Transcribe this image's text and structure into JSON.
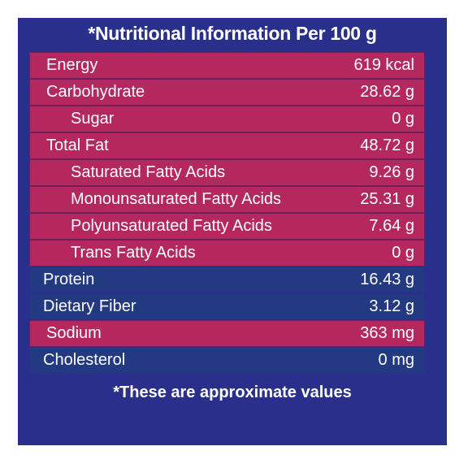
{
  "title": "*Nutritional Information Per 100 g",
  "table": {
    "rows": [
      [
        "Energy",
        "619 kcal"
      ],
      [
        "Carbohydrate",
        "28.62 g"
      ],
      [
        "Sugar",
        "0 g"
      ],
      [
        "Total Fat",
        "48.72 g"
      ],
      [
        "Saturated Fatty Acids",
        "9.26 g"
      ],
      [
        "Monounsaturated Fatty Acids",
        "25.31 g"
      ],
      [
        "Polyunsaturated Fatty Acids",
        "7.64 g"
      ],
      [
        "Trans Fatty Acids",
        "0 g"
      ],
      [
        "Protein",
        "16.43 g"
      ],
      [
        "Dietary Fiber",
        "3.12 g"
      ],
      [
        "Sodium",
        "363 mg"
      ],
      [
        "Cholesterol",
        "0 mg"
      ]
    ]
  },
  "footer": "*These are approximate values"
}
